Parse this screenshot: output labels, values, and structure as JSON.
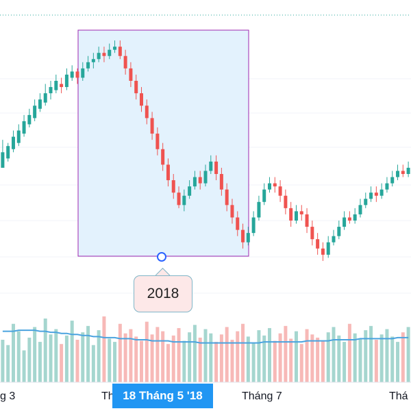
{
  "chart_data": {
    "type": "candlestick",
    "x_axis_labels": [
      "g 3",
      "Th",
      "Tháng 7",
      "Thá"
    ],
    "crosshair_label": "18 Tháng 5 '18",
    "colors": {
      "up": "#26a69a",
      "down": "#ef5350",
      "volume_ma": "#4aa3df",
      "selection_fill": "#e3f2fd",
      "selection_border": "#9c27b0"
    },
    "candles": [
      [
        142,
        147,
        151,
        143
      ],
      [
        145,
        149,
        150,
        144
      ],
      [
        148,
        152,
        154,
        147
      ],
      [
        150,
        154,
        156,
        149
      ],
      [
        153,
        157,
        159,
        152
      ],
      [
        156,
        159,
        161,
        155
      ],
      [
        158,
        162,
        164,
        157
      ],
      [
        161,
        164,
        166,
        160
      ],
      [
        163,
        166,
        169,
        162
      ],
      [
        166,
        168,
        170,
        164
      ],
      [
        167,
        170,
        172,
        166
      ],
      [
        169,
        168,
        171,
        166
      ],
      [
        168,
        172,
        174,
        167
      ],
      [
        171,
        173,
        175,
        170
      ],
      [
        173,
        171,
        174,
        169
      ],
      [
        171,
        174,
        176,
        170
      ],
      [
        174,
        176,
        178,
        173
      ],
      [
        176,
        177,
        179,
        174
      ],
      [
        177,
        179,
        181,
        176
      ],
      [
        179,
        178,
        181,
        176
      ],
      [
        178,
        180,
        182,
        177
      ],
      [
        180,
        181,
        183,
        179
      ],
      [
        181,
        178,
        183,
        177
      ],
      [
        178,
        174,
        180,
        172
      ],
      [
        174,
        170,
        176,
        168
      ],
      [
        170,
        166,
        172,
        164
      ],
      [
        166,
        162,
        168,
        160
      ],
      [
        162,
        158,
        164,
        156
      ],
      [
        158,
        153,
        160,
        151
      ],
      [
        153,
        148,
        155,
        146
      ],
      [
        148,
        143,
        150,
        141
      ],
      [
        143,
        138,
        145,
        136
      ],
      [
        138,
        134,
        140,
        132
      ],
      [
        134,
        130,
        136,
        129
      ],
      [
        130,
        133,
        135,
        128
      ],
      [
        133,
        136,
        138,
        132
      ],
      [
        136,
        139,
        141,
        135
      ],
      [
        139,
        137,
        141,
        135
      ],
      [
        137,
        141,
        143,
        136
      ],
      [
        141,
        144,
        146,
        140
      ],
      [
        144,
        140,
        146,
        138
      ],
      [
        140,
        135,
        142,
        133
      ],
      [
        135,
        130,
        137,
        128
      ],
      [
        130,
        126,
        132,
        124
      ],
      [
        126,
        122,
        128,
        120
      ],
      [
        122,
        118,
        124,
        116
      ],
      [
        118,
        121,
        123,
        117
      ],
      [
        121,
        126,
        128,
        120
      ],
      [
        126,
        131,
        133,
        125
      ],
      [
        131,
        135,
        137,
        130
      ],
      [
        135,
        137,
        139,
        134
      ],
      [
        137,
        136,
        139,
        134
      ],
      [
        136,
        133,
        138,
        131
      ],
      [
        133,
        129,
        135,
        127
      ],
      [
        129,
        125,
        131,
        123
      ],
      [
        125,
        128,
        130,
        124
      ],
      [
        128,
        127,
        130,
        125
      ],
      [
        127,
        123,
        129,
        121
      ],
      [
        123,
        119,
        125,
        117
      ],
      [
        119,
        116,
        121,
        114
      ],
      [
        116,
        114,
        118,
        112
      ],
      [
        114,
        118,
        120,
        113
      ],
      [
        118,
        120,
        122,
        117
      ],
      [
        120,
        123,
        125,
        119
      ],
      [
        123,
        126,
        128,
        122
      ],
      [
        126,
        125,
        128,
        124
      ],
      [
        125,
        127,
        129,
        124
      ],
      [
        127,
        130,
        132,
        126
      ],
      [
        130,
        132,
        134,
        129
      ],
      [
        132,
        134,
        136,
        131
      ],
      [
        134,
        133,
        136,
        131
      ],
      [
        133,
        135,
        137,
        132
      ],
      [
        135,
        137,
        139,
        134
      ],
      [
        137,
        139,
        141,
        136
      ],
      [
        139,
        141,
        143,
        138
      ],
      [
        141,
        140,
        143,
        139
      ],
      [
        140,
        142,
        144,
        139
      ]
    ],
    "volumes": [
      40,
      35,
      55,
      48,
      30,
      42,
      52,
      38,
      60,
      45,
      50,
      36,
      44,
      58,
      40,
      47,
      53,
      35,
      49,
      62,
      41,
      38,
      55,
      46,
      50,
      43,
      39,
      57,
      45,
      52,
      48,
      36,
      44,
      51,
      39,
      47,
      54,
      42,
      50,
      46,
      38,
      45,
      52,
      40,
      48,
      55,
      43,
      37,
      49,
      44,
      51,
      39,
      46,
      53,
      41,
      48,
      36,
      50,
      45,
      42,
      39,
      47,
      52,
      44,
      38,
      55,
      46,
      41,
      49,
      53,
      40,
      45,
      50,
      43,
      38,
      47,
      52
    ],
    "volume_ma": [
      48,
      48,
      48,
      49,
      49,
      49,
      49,
      48,
      48,
      47,
      47,
      46,
      46,
      45,
      45,
      44,
      44,
      43,
      43,
      42,
      42,
      42,
      41,
      41,
      41,
      40,
      40,
      40,
      39,
      39,
      39,
      39,
      38,
      38,
      38,
      38,
      38,
      37,
      37,
      37,
      37,
      37,
      37,
      37,
      37,
      37,
      37,
      37,
      37,
      38,
      38,
      38,
      38,
      38,
      38,
      38,
      38,
      39,
      39,
      39,
      39,
      39,
      40,
      40,
      40,
      40,
      40,
      41,
      41,
      41,
      41,
      41,
      41,
      41,
      42,
      42,
      42
    ]
  },
  "drawing": {
    "callout_text": "2018"
  }
}
